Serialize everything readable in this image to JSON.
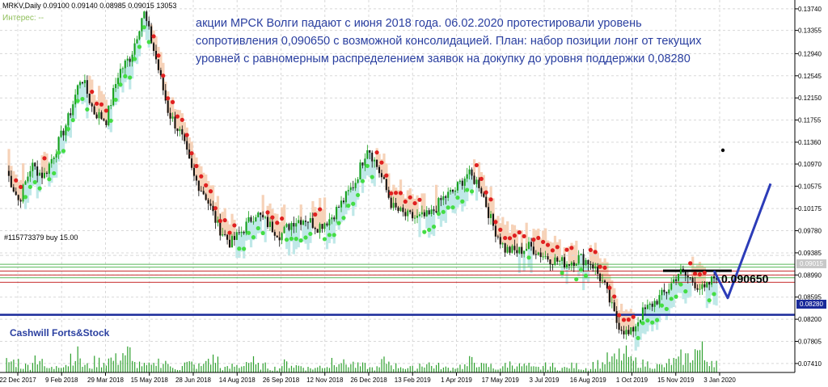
{
  "header": {
    "symbol_line": "MRKV,Daily  0.09100 0.09140 0.08985 0.09015  13053",
    "indicator_label": "Интерес: --"
  },
  "order_label": "#115773379 buy 15.00",
  "annotation": "акции МРСК Волги падают с июня 2018 года. 06.02.2020 протестировали уровень сопротивления 0,090650 с возможной консолидацией. План: набор позиции лонг от текущих уровней с равномерным распределением заявок на докупку до уровня поддержки 0,08280",
  "level_label": "0.090650",
  "brand": "Cashwill Forts&Stock",
  "price_tags": {
    "current": "0.09015",
    "support": "0.08280"
  },
  "colors": {
    "background": "#ffffff",
    "grid": "#d8d8d8",
    "bull": "#18a018",
    "bear": "#101010",
    "resistance": "#c83030",
    "support": "#1a2a9a",
    "green_levels": "#5ab85a",
    "plan_arrow": "#2c3cb8",
    "annotation_text": "#2a3fa0",
    "cloud_bull": "#bfe8e8",
    "cloud_bear": "#f6d2b8",
    "red_dots": "#e02020",
    "green_dots": "#44dd44",
    "volume": "#2ea02e"
  },
  "chart_data": {
    "type": "candlestick",
    "symbol": "MRKV",
    "timeframe": "Daily",
    "y_ticks": [
      "0.13740",
      "0.13355",
      "0.12940",
      "0.12545",
      "0.12150",
      "0.11755",
      "0.11360",
      "0.10970",
      "0.10575",
      "0.10175",
      "0.09780",
      "0.09385",
      "0.08990",
      "0.08595",
      "0.08200",
      "0.07805",
      "0.07410"
    ],
    "x_ticks": [
      "22 Dec 2017",
      "9 Feb 2018",
      "29 Mar 2018",
      "15 May 2018",
      "28 Jun 2018",
      "14 Aug 2018",
      "26 Sep 2018",
      "12 Nov 2018",
      "26 Dec 2018",
      "13 Feb 2019",
      "1 Apr 2019",
      "17 May 2019",
      "3 Jul 2019",
      "16 Aug 2019",
      "1 Oct 2019",
      "15 Nov 2019",
      "3 Jan 2020"
    ],
    "ylim": [
      0.0725,
      0.1384
    ],
    "price_path": [
      0.1085,
      0.103,
      0.1095,
      0.1075,
      0.1125,
      0.118,
      0.1255,
      0.119,
      0.1175,
      0.126,
      0.129,
      0.137,
      0.1285,
      0.119,
      0.115,
      0.1075,
      0.104,
      0.0985,
      0.0955,
      0.098,
      0.101,
      0.099,
      0.097,
      0.0995,
      0.1,
      0.0985,
      0.1,
      0.103,
      0.1065,
      0.113,
      0.108,
      0.102,
      0.1005,
      0.1,
      0.1005,
      0.1035,
      0.105,
      0.108,
      0.106,
      0.099,
      0.0945,
      0.094,
      0.095,
      0.0935,
      0.0925,
      0.092,
      0.093,
      0.092,
      0.088,
      0.0815,
      0.079,
      0.083,
      0.085,
      0.087,
      0.0905,
      0.089,
      0.087,
      0.09
    ],
    "volume_path": [
      0.5,
      0.3,
      0.7,
      0.2,
      0.4,
      0.8,
      0.3,
      0.5,
      0.6,
      0.9,
      0.4,
      0.3,
      0.5,
      0.2,
      0.4,
      0.3,
      0.6,
      0.2,
      0.3,
      0.5,
      0.3,
      0.2,
      0.4,
      0.3,
      0.2,
      0.3,
      0.6,
      0.4,
      0.3,
      0.2,
      0.5,
      0.3,
      0.2,
      0.4,
      0.3,
      0.2,
      0.3,
      0.5,
      0.3,
      0.2,
      0.4,
      0.3,
      0.2,
      0.3,
      0.2,
      0.3,
      0.2,
      0.4,
      0.6,
      0.8,
      0.5,
      0.4,
      0.3,
      0.5,
      0.7,
      1.0,
      0.6,
      0.5
    ],
    "levels": {
      "resistance": 0.09065,
      "support": 0.0828,
      "current": 0.09015
    },
    "plan_path": [
      0.09065,
      0.0858,
      0.1062
    ]
  }
}
